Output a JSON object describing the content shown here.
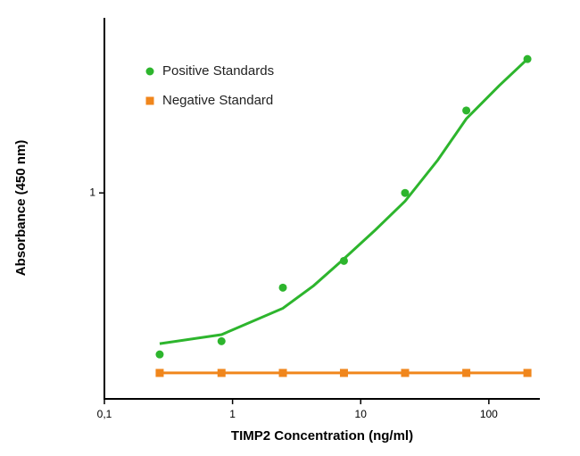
{
  "chart_data": {
    "type": "line",
    "x_label": "TIMP2 Concentration (ng/ml)",
    "y_label": "Absorbance (450 nm)",
    "log_x": true,
    "xlim": [
      0.1,
      250
    ],
    "xticks": [
      {
        "value": 0.1,
        "label": "0,1"
      },
      1,
      10,
      100
    ],
    "ylim": [
      0,
      1.85
    ],
    "yticks": [
      1
    ],
    "legend": "upper left",
    "series": [
      {
        "name": "Positive Standards",
        "color": "#2db52d",
        "marker": "circle",
        "x": [
          0.27,
          0.82,
          2.47,
          7.4,
          22.2,
          66.7,
          200
        ],
        "values": [
          0.216,
          0.28,
          0.54,
          0.67,
          1.0,
          1.4,
          1.65
        ],
        "fit": {
          "x": [
            0.27,
            0.82,
            2.47,
            4.3,
            7.4,
            13,
            22.2,
            40,
            66.7,
            120,
            200
          ],
          "values": [
            0.268,
            0.312,
            0.44,
            0.55,
            0.68,
            0.82,
            0.96,
            1.16,
            1.36,
            1.52,
            1.65
          ]
        }
      },
      {
        "name": "Negative Standard",
        "color": "#f0861c",
        "marker": "square",
        "x": [
          0.27,
          0.82,
          2.47,
          7.4,
          22.2,
          66.7,
          200
        ],
        "values": [
          0.126,
          0.126,
          0.126,
          0.126,
          0.126,
          0.126,
          0.126
        ]
      }
    ]
  }
}
